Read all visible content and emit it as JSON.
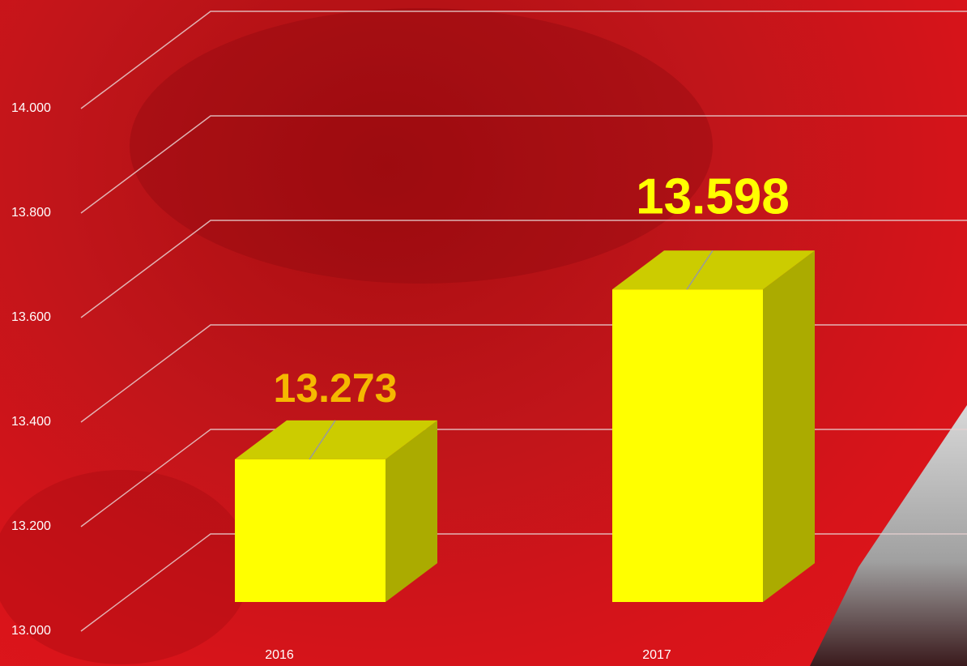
{
  "chart_data": {
    "type": "bar3d",
    "categories": [
      "2016",
      "2017"
    ],
    "values": [
      13273,
      13598
    ],
    "value_labels": [
      "13.273",
      "13.598"
    ],
    "value_label_colors": [
      "#f5b800",
      "#ffff00"
    ],
    "color": "#ffff00",
    "ylim": [
      13000,
      14000
    ],
    "yticks": [
      {
        "value": 13000,
        "label": "13.000"
      },
      {
        "value": 13200,
        "label": "13.200"
      },
      {
        "value": 13400,
        "label": "13.400"
      },
      {
        "value": 13600,
        "label": "13.600"
      },
      {
        "value": 13800,
        "label": "13.800"
      },
      {
        "value": 14000,
        "label": "14.000"
      }
    ],
    "grid": true
  }
}
